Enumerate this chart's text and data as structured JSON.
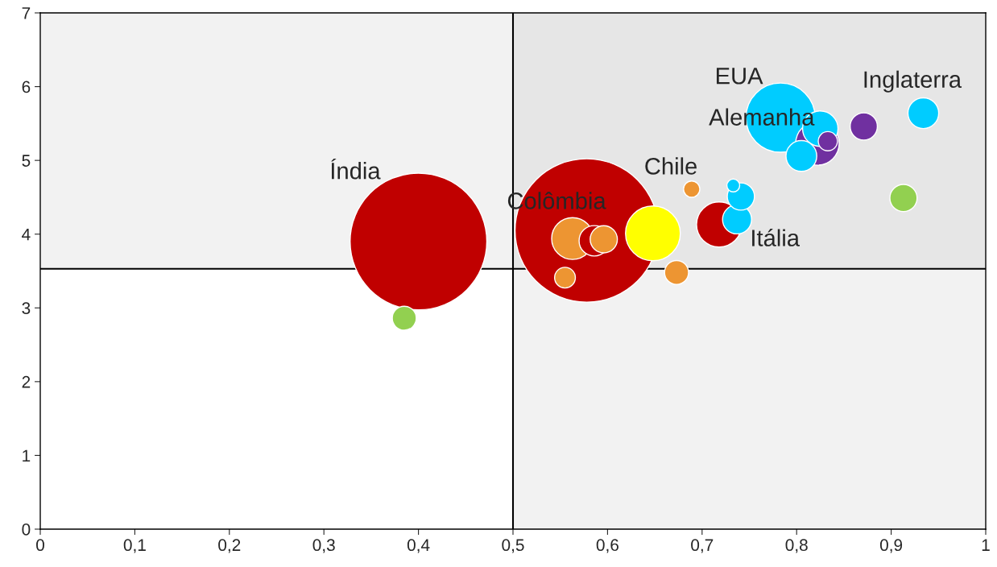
{
  "chart_data": {
    "type": "bubble",
    "x": [
      0.4,
      0.385,
      0.578,
      0.563,
      0.586,
      0.596,
      0.555,
      0.648,
      0.673,
      0.689,
      0.718,
      0.741,
      0.733,
      0.737,
      0.783,
      0.822,
      0.825,
      0.833,
      0.805,
      0.871,
      0.934,
      0.913
    ],
    "values": [
      3.9,
      2.86,
      4.05,
      3.94,
      3.91,
      3.93,
      3.41,
      4.01,
      3.48,
      4.61,
      4.13,
      4.51,
      4.66,
      4.2,
      5.58,
      5.23,
      5.43,
      5.26,
      5.06,
      5.46,
      5.64,
      4.49
    ],
    "sizes": [
      0.91,
      0.028,
      1,
      0.085,
      0.045,
      0.036,
      0.021,
      0.146,
      0.028,
      0.013,
      0.099,
      0.036,
      0.008,
      0.041,
      0.233,
      0.092,
      0.061,
      0.018,
      0.046,
      0.036,
      0.046,
      0.036
    ],
    "colors": [
      "#c00000",
      "#92d050",
      "#c00000",
      "#ed9532",
      "#c00000",
      "#ed9532",
      "#ed9532",
      "#ffff00",
      "#ed9532",
      "#ed9532",
      "#c00000",
      "#00ccff",
      "#00ccff",
      "#00ccff",
      "#00ccff",
      "#7030a0",
      "#00ccff",
      "#7030a0",
      "#00ccff",
      "#7030a0",
      "#00ccff",
      "#92d050"
    ],
    "xlim": [
      0,
      1
    ],
    "ylim": [
      0,
      7
    ],
    "xticks": [
      0,
      {
        "value": 0.1,
        "label": "0,1"
      },
      {
        "value": 0.2,
        "label": "0,2"
      },
      {
        "value": 0.3,
        "label": "0,3"
      },
      {
        "value": 0.4,
        "label": "0,4"
      },
      {
        "value": 0.5,
        "label": "0,5"
      },
      {
        "value": 0.6,
        "label": "0,6"
      },
      {
        "value": 0.7,
        "label": "0,7"
      },
      {
        "value": 0.8,
        "label": "0,8"
      },
      {
        "value": 0.9,
        "label": "0,9"
      },
      1
    ],
    "yticks": [
      0,
      1,
      2,
      3,
      4,
      5,
      6,
      7
    ],
    "grid": false,
    "legend": false,
    "bands": [
      {
        "axis": "x",
        "from": 0.5,
        "to": 1,
        "color": "#808080"
      },
      {
        "axis": "y",
        "from": 3.53,
        "to": 7,
        "color": "#808080"
      }
    ],
    "ref_lines": [
      {
        "axis": "x",
        "value": 0.5,
        "color": "#000000"
      },
      {
        "axis": "y",
        "value": 3.53,
        "color": "#000000"
      }
    ],
    "annotations": [
      "Índia",
      "Colômbia",
      "Chile",
      "Itália",
      "EUA",
      "Alemanha",
      "Inglaterra"
    ]
  }
}
